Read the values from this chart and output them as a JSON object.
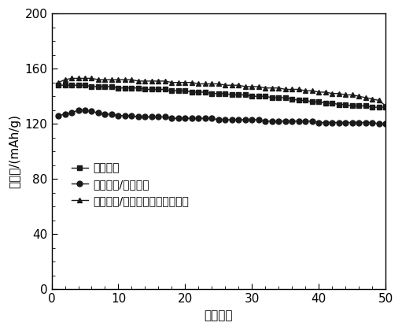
{
  "title": "",
  "xlabel": "循环次数",
  "ylabel": "比容量/(mAh/g)",
  "xlim": [
    0,
    50
  ],
  "ylim": [
    0,
    200
  ],
  "xticks": [
    0,
    10,
    20,
    30,
    40,
    50
  ],
  "yticks": [
    0,
    40,
    80,
    120,
    160,
    200
  ],
  "series1": {
    "label": "磷酸铁锂",
    "marker": "s",
    "color": "#1a1a1a",
    "x": [
      1,
      2,
      3,
      4,
      5,
      6,
      7,
      8,
      9,
      10,
      11,
      12,
      13,
      14,
      15,
      16,
      17,
      18,
      19,
      20,
      21,
      22,
      23,
      24,
      25,
      26,
      27,
      28,
      29,
      30,
      31,
      32,
      33,
      34,
      35,
      36,
      37,
      38,
      39,
      40,
      41,
      42,
      43,
      44,
      45,
      46,
      47,
      48,
      49,
      50
    ],
    "y": [
      148,
      148,
      148,
      148,
      148,
      147,
      147,
      147,
      147,
      146,
      146,
      146,
      146,
      145,
      145,
      145,
      145,
      144,
      144,
      144,
      143,
      143,
      143,
      142,
      142,
      142,
      141,
      141,
      141,
      140,
      140,
      140,
      139,
      139,
      139,
      138,
      137,
      137,
      136,
      136,
      135,
      135,
      134,
      134,
      133,
      133,
      133,
      132,
      132,
      132
    ]
  },
  "series2": {
    "label": "磷酸铁锂/碳纳米管",
    "marker": "o",
    "color": "#1a1a1a",
    "x": [
      1,
      2,
      3,
      4,
      5,
      6,
      7,
      8,
      9,
      10,
      11,
      12,
      13,
      14,
      15,
      16,
      17,
      18,
      19,
      20,
      21,
      22,
      23,
      24,
      25,
      26,
      27,
      28,
      29,
      30,
      31,
      32,
      33,
      34,
      35,
      36,
      37,
      38,
      39,
      40,
      41,
      42,
      43,
      44,
      45,
      46,
      47,
      48,
      49,
      50
    ],
    "y": [
      126,
      127,
      128,
      130,
      130,
      129,
      128,
      127,
      127,
      126,
      126,
      126,
      125,
      125,
      125,
      125,
      125,
      124,
      124,
      124,
      124,
      124,
      124,
      124,
      123,
      123,
      123,
      123,
      123,
      123,
      123,
      122,
      122,
      122,
      122,
      122,
      122,
      122,
      122,
      121,
      121,
      121,
      121,
      121,
      121,
      121,
      121,
      121,
      120,
      120
    ]
  },
  "series3": {
    "label": "磷酸铁锂/聚氧乙烯接枝碳纳米管",
    "marker": "^",
    "color": "#1a1a1a",
    "x": [
      1,
      2,
      3,
      4,
      5,
      6,
      7,
      8,
      9,
      10,
      11,
      12,
      13,
      14,
      15,
      16,
      17,
      18,
      19,
      20,
      21,
      22,
      23,
      24,
      25,
      26,
      27,
      28,
      29,
      30,
      31,
      32,
      33,
      34,
      35,
      36,
      37,
      38,
      39,
      40,
      41,
      42,
      43,
      44,
      45,
      46,
      47,
      48,
      49,
      50
    ],
    "y": [
      150,
      152,
      153,
      153,
      153,
      153,
      152,
      152,
      152,
      152,
      152,
      152,
      151,
      151,
      151,
      151,
      151,
      150,
      150,
      150,
      150,
      149,
      149,
      149,
      149,
      148,
      148,
      148,
      147,
      147,
      147,
      146,
      146,
      146,
      145,
      145,
      145,
      144,
      144,
      143,
      143,
      142,
      142,
      141,
      141,
      140,
      139,
      138,
      137,
      133
    ]
  },
  "background_color": "#ffffff",
  "font_color": "#000000",
  "markersize": 5,
  "linewidth": 1.0,
  "font_size": 11,
  "legend_font_size": 10
}
